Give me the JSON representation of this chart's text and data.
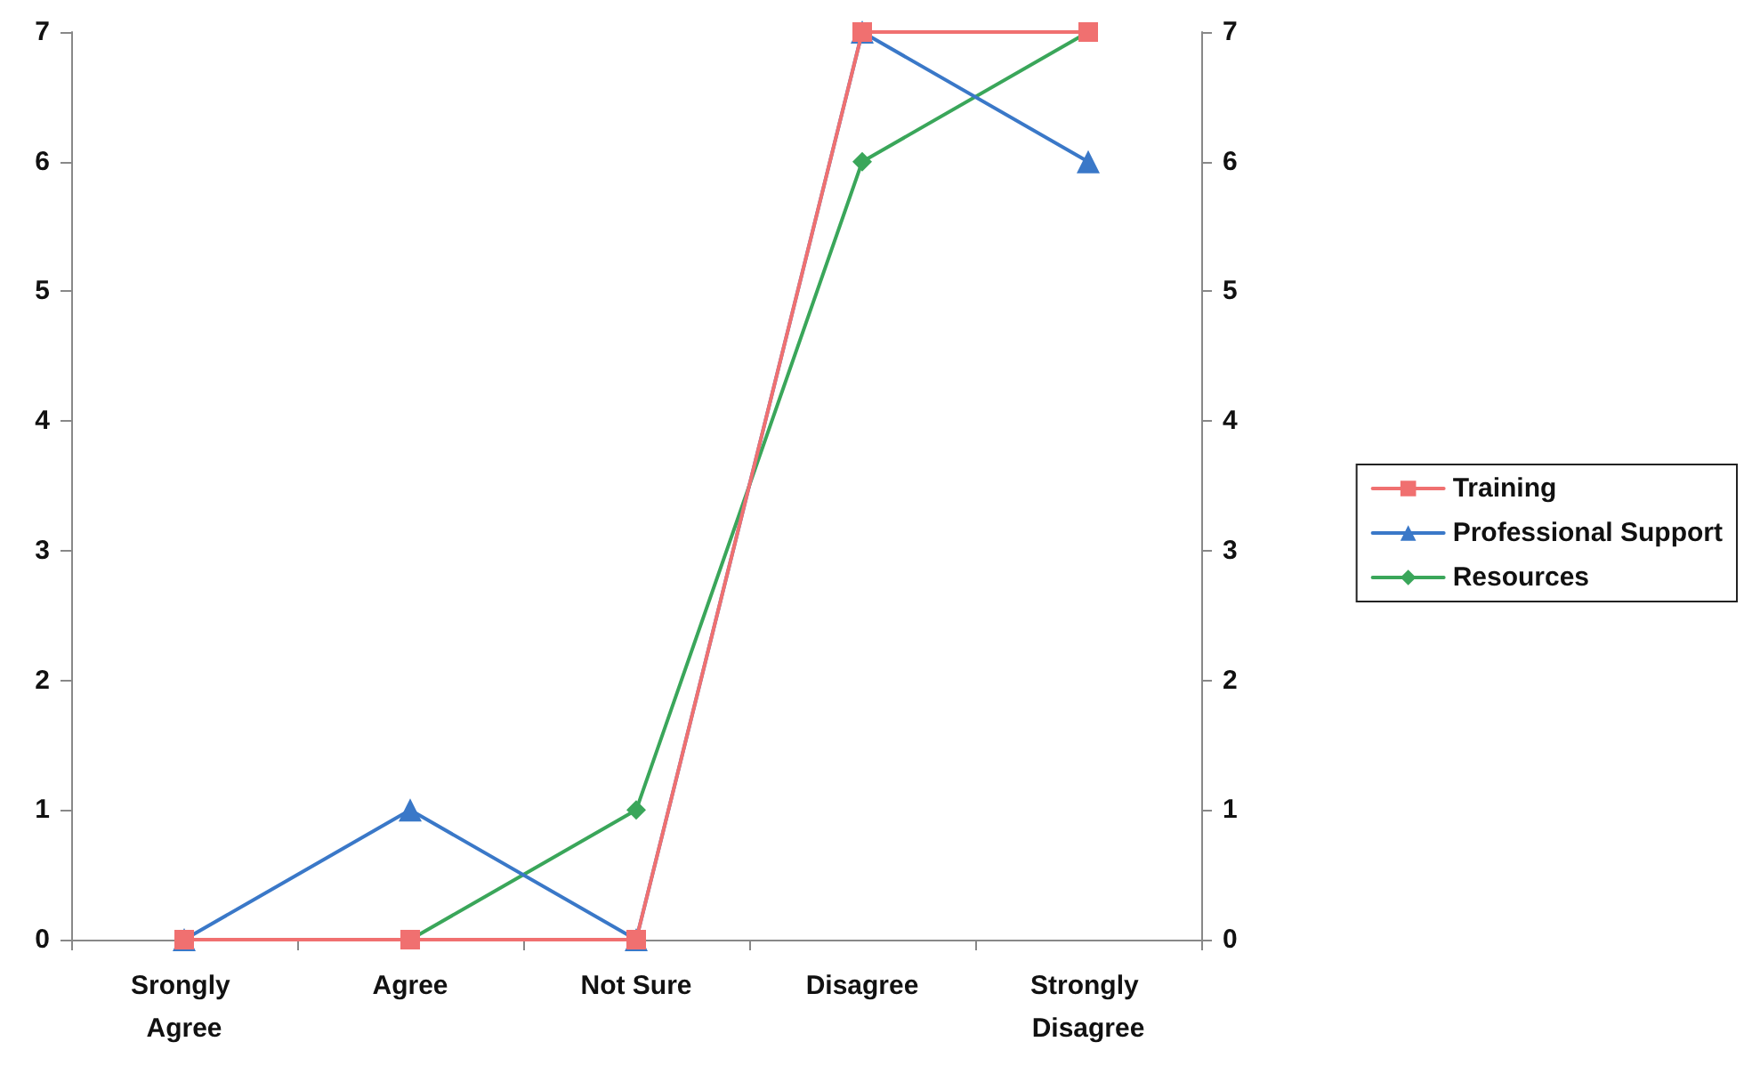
{
  "chart_data": {
    "type": "line",
    "categories": [
      "Srongly Agree",
      "Agree",
      "Not Sure",
      "Disagree",
      "Strongly Disagree"
    ],
    "series": [
      {
        "name": "Training",
        "color": "#f07070",
        "marker": "square",
        "values": [
          0,
          0,
          0,
          7,
          7
        ]
      },
      {
        "name": "Professional Support",
        "color": "#3a78c8",
        "marker": "triangle",
        "values": [
          0,
          1,
          0,
          7,
          6
        ]
      },
      {
        "name": "Resources",
        "color": "#3aa65a",
        "marker": "diamond",
        "values": [
          0,
          0,
          1,
          6,
          7
        ]
      }
    ],
    "ylim": [
      0,
      7
    ],
    "yticks": [
      0,
      1,
      2,
      3,
      4,
      5,
      6,
      7
    ],
    "y2lim": [
      0,
      7
    ],
    "y2ticks": [
      0,
      1,
      2,
      3,
      4,
      5,
      6,
      7
    ],
    "grid": false,
    "legend": "right",
    "line_style": "solid"
  }
}
